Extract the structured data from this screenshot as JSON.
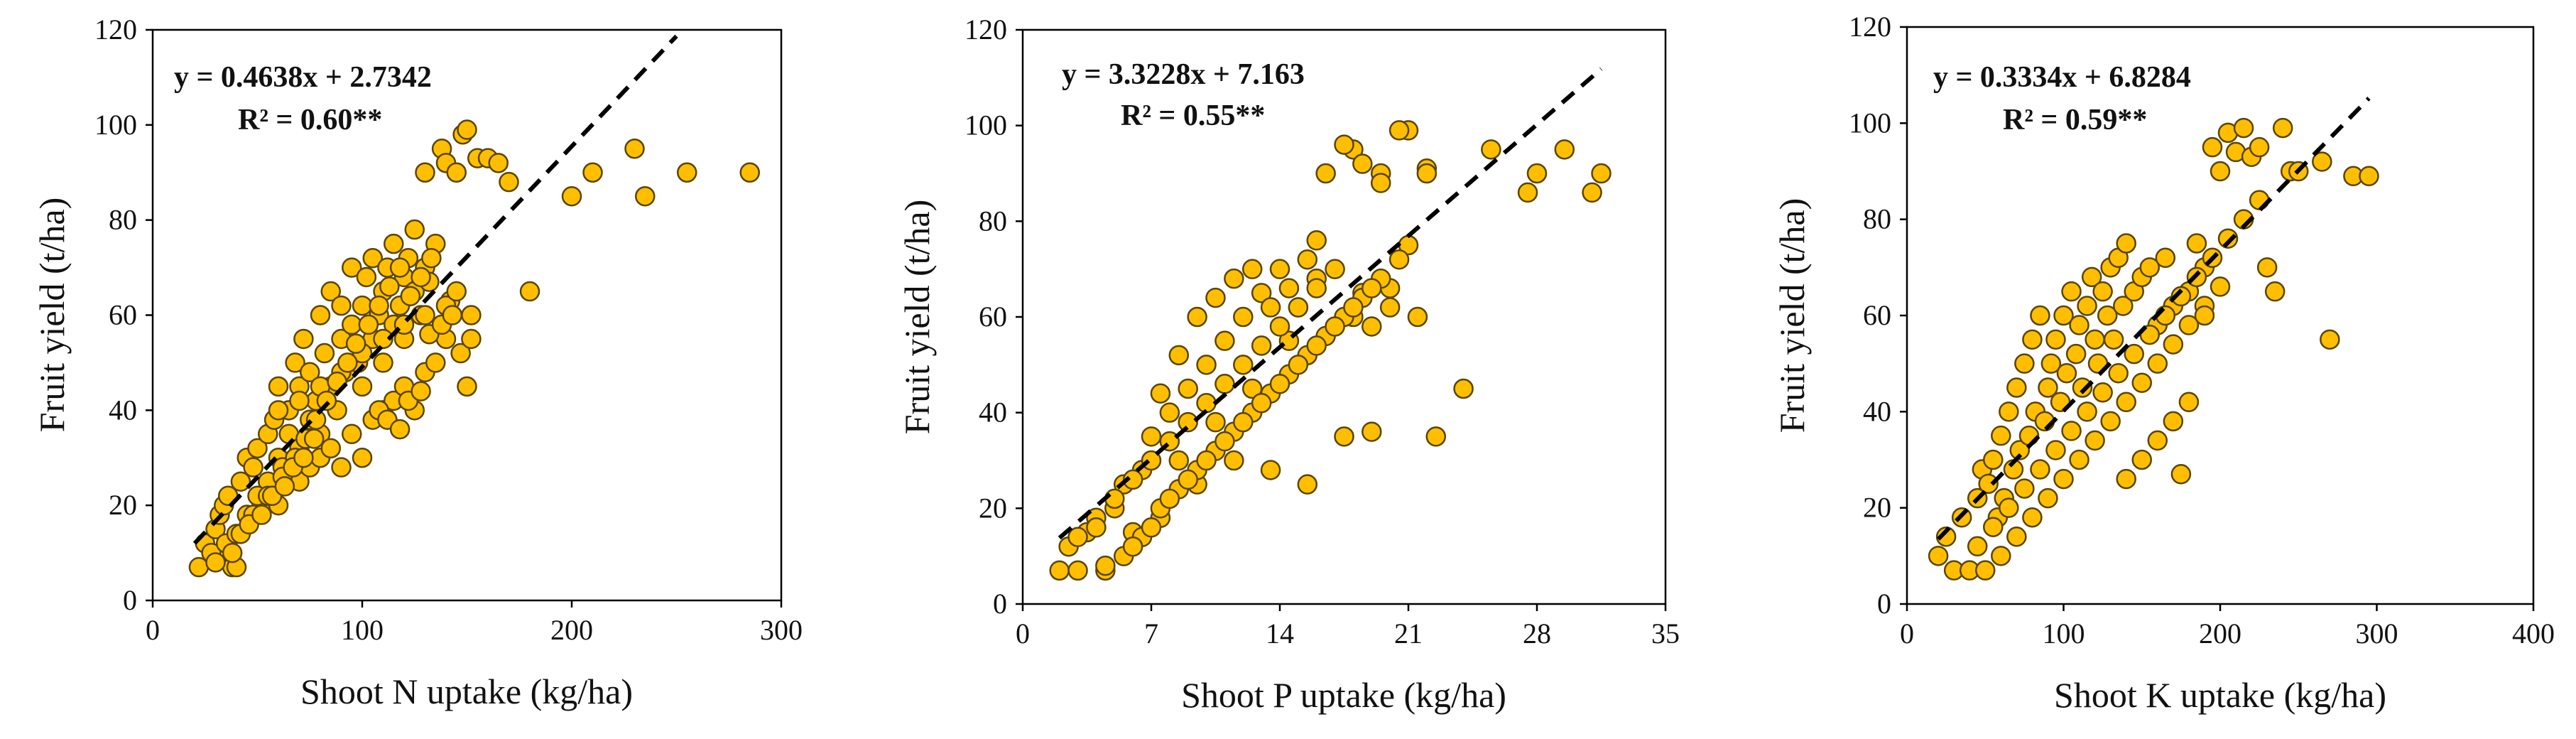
{
  "chart_data": [
    {
      "type": "scatter",
      "xlabel": "Shoot N uptake (kg/ha)",
      "ylabel": "Fruit yield (t/ha)",
      "xlim": [
        0,
        300
      ],
      "ylim": [
        0,
        120
      ],
      "xticks": [
        "0",
        "100",
        "200",
        "300"
      ],
      "yticks": [
        "0",
        "20",
        "40",
        "60",
        "80",
        "100",
        "120"
      ],
      "grid": false,
      "marker_color": "#FFBF00",
      "trendline": {
        "equation": "y = 0.4638x + 2.7342",
        "r2_label": "R² = 0.60**",
        "slope": 0.4638,
        "intercept": 2.7342,
        "x_start": 20,
        "x_end": 250
      },
      "x": [
        22,
        25,
        28,
        30,
        32,
        34,
        36,
        38,
        40,
        42,
        45,
        48,
        50,
        52,
        55,
        55,
        58,
        60,
        60,
        62,
        65,
        65,
        68,
        70,
        70,
        72,
        75,
        75,
        78,
        80,
        80,
        82,
        85,
        85,
        88,
        90,
        90,
        92,
        95,
        95,
        98,
        100,
        100,
        102,
        105,
        105,
        108,
        110,
        110,
        112,
        115,
        115,
        118,
        120,
        120,
        122,
        125,
        125,
        128,
        130,
        130,
        132,
        135,
        138,
        140,
        142,
        145,
        148,
        150,
        152,
        155,
        160,
        165,
        170,
        180,
        200,
        210,
        230,
        235,
        255,
        285,
        45,
        50,
        60,
        70,
        75,
        80,
        85,
        90,
        95,
        100,
        105,
        110,
        115,
        120,
        125,
        130,
        135,
        140,
        150,
        60,
        70,
        80,
        90,
        100,
        110,
        120,
        130,
        140,
        145,
        35,
        40,
        48,
        55,
        62,
        68,
        73,
        78,
        83,
        88,
        93,
        97,
        103,
        108,
        113,
        118,
        123,
        128,
        133,
        108,
        112,
        118,
        122,
        128,
        132,
        138,
        143,
        147,
        152,
        30,
        38,
        42,
        46,
        52,
        57,
        63,
        67,
        72,
        77
      ],
      "y": [
        7,
        12,
        10,
        15,
        18,
        20,
        22,
        7,
        7,
        25,
        30,
        28,
        32,
        20,
        35,
        25,
        38,
        30,
        45,
        28,
        40,
        35,
        50,
        32,
        45,
        55,
        38,
        48,
        42,
        60,
        35,
        52,
        45,
        65,
        40,
        55,
        62,
        48,
        58,
        70,
        50,
        62,
        45,
        68,
        55,
        72,
        60,
        65,
        50,
        70,
        58,
        75,
        62,
        68,
        55,
        72,
        65,
        78,
        60,
        70,
        90,
        67,
        75,
        95,
        92,
        63,
        90,
        98,
        99,
        60,
        93,
        93,
        92,
        88,
        65,
        85,
        90,
        95,
        85,
        90,
        90,
        18,
        22,
        20,
        25,
        28,
        30,
        32,
        28,
        35,
        30,
        38,
        40,
        42,
        45,
        40,
        48,
        50,
        55,
        45,
        40,
        42,
        45,
        48,
        52,
        55,
        58,
        60,
        62,
        65,
        12,
        14,
        18,
        22,
        26,
        30,
        34,
        38,
        42,
        46,
        50,
        54,
        58,
        62,
        66,
        70,
        64,
        68,
        72,
        40,
        38,
        36,
        42,
        44,
        56,
        58,
        60,
        52,
        55,
        8,
        10,
        14,
        16,
        18,
        22,
        24,
        28,
        30,
        34
      ]
    },
    {
      "type": "scatter",
      "xlabel": "Shoot P uptake (kg/ha)",
      "ylabel": "Fruit yield (t/ha)",
      "xlim": [
        0,
        35
      ],
      "ylim": [
        0,
        120
      ],
      "xticks": [
        "0",
        "7",
        "14",
        "21",
        "28",
        "35"
      ],
      "yticks": [
        "0",
        "20",
        "40",
        "60",
        "80",
        "100",
        "120"
      ],
      "grid": false,
      "marker_color": "#FFBF00",
      "trendline": {
        "equation": "y = 3.3228x + 7.163",
        "r2_label": "R² = 0.55**",
        "slope": 3.3228,
        "intercept": 7.163,
        "x_start": 2,
        "x_end": 31.5
      },
      "x": [
        2.0,
        2.5,
        3.0,
        3.5,
        4.0,
        4.5,
        5.0,
        5.5,
        6.0,
        6.5,
        7.0,
        7.5,
        8.0,
        8.5,
        9.0,
        9.5,
        10.0,
        10.5,
        11.0,
        11.5,
        12.0,
        12.5,
        13.0,
        13.5,
        14.0,
        14.5,
        15.0,
        15.5,
        16.0,
        16.5,
        17.0,
        17.5,
        18.0,
        18.5,
        19.0,
        19.5,
        20.0,
        21.0,
        22.0,
        24.0,
        25.5,
        27.5,
        28.0,
        29.5,
        31.0,
        31.5,
        3.0,
        4.0,
        5.0,
        6.0,
        7.0,
        8.0,
        9.0,
        10.0,
        11.0,
        12.0,
        13.0,
        14.0,
        15.0,
        16.0,
        17.0,
        18.0,
        19.0,
        20.0,
        21.0,
        22.0,
        5.5,
        6.5,
        7.5,
        8.5,
        9.5,
        10.5,
        11.5,
        12.5,
        13.5,
        14.5,
        15.5,
        16.5,
        17.5,
        18.5,
        19.5,
        20.5,
        4.5,
        6.0,
        7.0,
        8.0,
        9.0,
        10.0,
        11.0,
        12.0,
        13.0,
        14.0,
        15.0,
        16.0,
        17.0,
        18.0,
        19.0,
        16.0,
        17.5,
        18.5,
        19.5,
        20.5,
        21.5,
        22.5,
        7.5,
        8.5,
        9.5,
        10.5,
        11.5,
        12.5,
        13.5,
        14.5,
        15.5
      ],
      "y": [
        7,
        12,
        7,
        15,
        18,
        7,
        20,
        25,
        15,
        28,
        35,
        18,
        40,
        30,
        45,
        25,
        50,
        38,
        55,
        30,
        60,
        45,
        65,
        28,
        70,
        55,
        62,
        25,
        68,
        90,
        58,
        35,
        95,
        65,
        36,
        90,
        62,
        99,
        91,
        45,
        95,
        86,
        90,
        95,
        86,
        90,
        14,
        16,
        22,
        26,
        30,
        34,
        38,
        42,
        46,
        50,
        54,
        58,
        62,
        66,
        70,
        60,
        58,
        66,
        75,
        90,
        10,
        14,
        20,
        24,
        28,
        32,
        36,
        40,
        44,
        48,
        52,
        56,
        60,
        64,
        68,
        72,
        8,
        12,
        16,
        22,
        26,
        30,
        34,
        38,
        42,
        46,
        50,
        54,
        58,
        62,
        66,
        76,
        96,
        92,
        88,
        99,
        60,
        35,
        44,
        52,
        60,
        64,
        68,
        70,
        62,
        66,
        72
      ]
    },
    {
      "type": "scatter",
      "xlabel": "Shoot K uptake (kg/ha)",
      "ylabel": "Fruit yield (t/ha)",
      "xlim": [
        0,
        400
      ],
      "ylim": [
        0,
        120
      ],
      "xticks": [
        "0",
        "100",
        "200",
        "300",
        "400"
      ],
      "yticks": [
        "0",
        "20",
        "40",
        "60",
        "80",
        "100",
        "120"
      ],
      "grid": false,
      "marker_color": "#FFBF00",
      "trendline": {
        "equation": "y = 0.3334x + 6.8284",
        "r2_label": "R² = 0.59**",
        "slope": 0.3334,
        "intercept": 6.8284,
        "x_start": 20,
        "x_end": 295
      },
      "x": [
        20,
        25,
        30,
        35,
        40,
        45,
        48,
        50,
        52,
        55,
        58,
        60,
        62,
        65,
        68,
        70,
        72,
        75,
        78,
        80,
        82,
        85,
        88,
        90,
        92,
        95,
        98,
        100,
        102,
        105,
        108,
        110,
        112,
        115,
        118,
        120,
        122,
        125,
        128,
        130,
        132,
        135,
        138,
        140,
        145,
        150,
        155,
        160,
        165,
        170,
        175,
        180,
        185,
        190,
        195,
        200,
        205,
        210,
        215,
        220,
        225,
        230,
        235,
        240,
        245,
        250,
        265,
        270,
        285,
        295,
        60,
        70,
        80,
        90,
        100,
        110,
        120,
        130,
        140,
        150,
        160,
        170,
        180,
        190,
        45,
        55,
        65,
        75,
        85,
        95,
        105,
        115,
        125,
        135,
        145,
        155,
        165,
        175,
        185,
        195,
        205,
        215,
        225,
        140,
        150,
        160,
        170,
        180,
        190,
        200
      ],
      "y": [
        10,
        14,
        7,
        18,
        7,
        22,
        28,
        7,
        25,
        30,
        18,
        35,
        22,
        40,
        28,
        45,
        32,
        50,
        35,
        55,
        40,
        60,
        38,
        45,
        50,
        55,
        42,
        60,
        48,
        65,
        52,
        58,
        45,
        62,
        68,
        55,
        50,
        65,
        60,
        70,
        55,
        72,
        62,
        75,
        65,
        68,
        70,
        58,
        72,
        62,
        27,
        65,
        75,
        70,
        95,
        90,
        98,
        94,
        99,
        93,
        95,
        70,
        65,
        99,
        90,
        90,
        92,
        55,
        89,
        89,
        10,
        14,
        18,
        22,
        26,
        30,
        34,
        38,
        42,
        46,
        50,
        54,
        58,
        62,
        12,
        16,
        20,
        24,
        28,
        32,
        36,
        40,
        44,
        48,
        52,
        56,
        60,
        64,
        68,
        72,
        76,
        80,
        84,
        26,
        30,
        34,
        38,
        42,
        60,
        66
      ]
    }
  ]
}
